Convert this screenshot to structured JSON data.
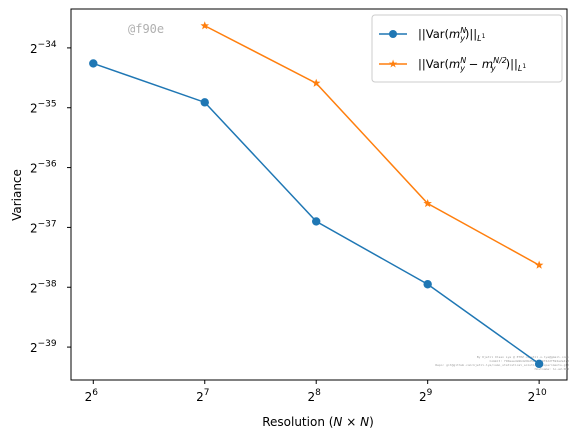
{
  "watermark": "@f90e",
  "credit_lines": [
    "By Kjetil Olsen Lye @ ETHZ <kjetil.o.lye@gmail.com>",
    "Commit: f90eeeda9b42dbd5276fa9f4d2f592a2e4fd",
    "Repo: git@github.com:kjetil-lye/ismo_statistical_solutions_experiments.git",
    "Hostname: lo-a2-002"
  ],
  "chart_data": {
    "type": "line",
    "title": "",
    "xlabel": "Resolution ($N\\times N$)",
    "xlabel_parts": {
      "prefix": "Resolution (",
      "N1": "N",
      "times": " × ",
      "N2": "N",
      "suffix": ")"
    },
    "ylabel": "Variance",
    "xscale": "log2",
    "yscale": "log2",
    "x_exponent_range": [
      5.8,
      10.25
    ],
    "y_exponent_range": [
      -39.55,
      -33.35
    ],
    "x_ticks": [
      {
        "base": "2",
        "exp": "6",
        "value": 6
      },
      {
        "base": "2",
        "exp": "7",
        "value": 7
      },
      {
        "base": "2",
        "exp": "8",
        "value": 8
      },
      {
        "base": "2",
        "exp": "9",
        "value": 9
      },
      {
        "base": "2",
        "exp": "10",
        "value": 10
      }
    ],
    "y_ticks": [
      {
        "base": "2",
        "exp": "−34",
        "value": -34
      },
      {
        "base": "2",
        "exp": "−35",
        "value": -35
      },
      {
        "base": "2",
        "exp": "−36",
        "value": -36
      },
      {
        "base": "2",
        "exp": "−37",
        "value": -37
      },
      {
        "base": "2",
        "exp": "−38",
        "value": -38
      },
      {
        "base": "2",
        "exp": "−39",
        "value": -39
      }
    ],
    "grid": false,
    "legend_position": "top-right",
    "series": [
      {
        "name": "||Var(m_y^N)||_{L^1}",
        "color": "#1f77b4",
        "marker": "circle",
        "x_exponents": [
          6,
          7,
          8,
          9,
          10
        ],
        "y_exponents": [
          -34.26,
          -34.91,
          -36.9,
          -37.95,
          -39.28
        ]
      },
      {
        "name": "||Var(m_y^N - m_y^{N/2})||_{L^1}",
        "color": "#ff7f0e",
        "marker": "star",
        "x_exponents": [
          7,
          8,
          9,
          10
        ],
        "y_exponents": [
          -33.63,
          -34.59,
          -36.6,
          -37.63
        ]
      }
    ]
  }
}
